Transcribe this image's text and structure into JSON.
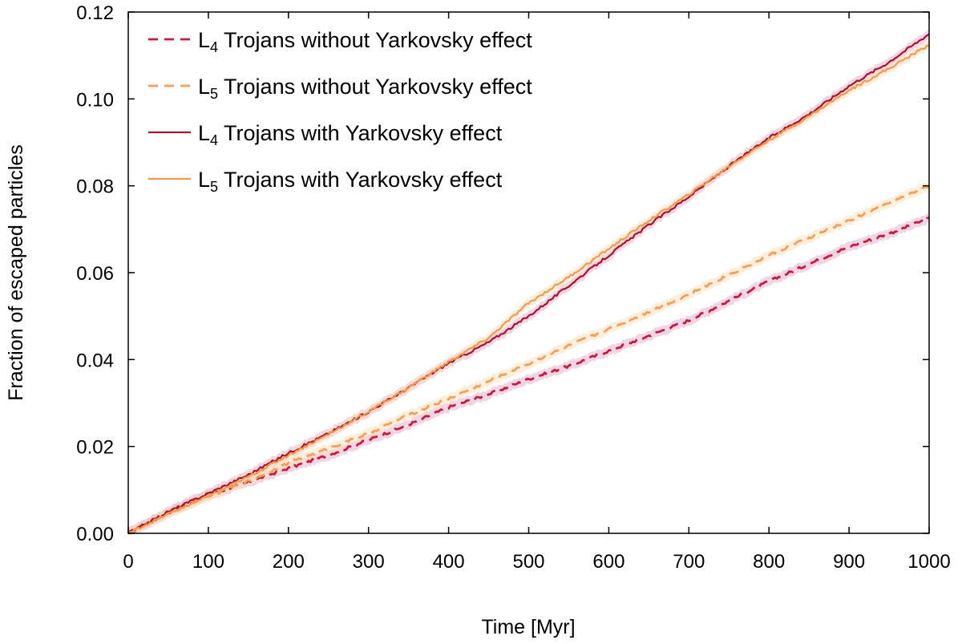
{
  "chart_data": {
    "type": "line",
    "title": "",
    "xlabel": "Time [Myr]",
    "ylabel": "Fraction of escaped particles",
    "xlim": [
      0,
      1000
    ],
    "ylim": [
      0,
      0.12
    ],
    "xticks": [
      0,
      100,
      200,
      300,
      400,
      500,
      600,
      700,
      800,
      900,
      1000
    ],
    "yticks": [
      0,
      0.02,
      0.04,
      0.06,
      0.08,
      0.1,
      0.12
    ],
    "xtick_labels": [
      "0",
      "100",
      "200",
      "300",
      "400",
      "500",
      "600",
      "700",
      "800",
      "900",
      "1000"
    ],
    "ytick_labels": [
      "0.00",
      "0.02",
      "0.04",
      "0.06",
      "0.08",
      "0.10",
      "0.12"
    ],
    "grid": false,
    "legend_position": "top-left",
    "series": [
      {
        "name": "L4 Trojans without Yarkovsky effect",
        "legend_main": "L",
        "legend_sub": "4",
        "legend_rest": " Trojans without Yarkovsky effect",
        "color": "#c41e3a",
        "band_color": "#e6b0cf",
        "dash": "dashed",
        "x": [
          0,
          50,
          100,
          150,
          200,
          250,
          300,
          350,
          400,
          450,
          500,
          550,
          600,
          650,
          700,
          750,
          800,
          850,
          900,
          950,
          1000
        ],
        "y": [
          0,
          0.0048,
          0.0088,
          0.0118,
          0.015,
          0.018,
          0.0215,
          0.025,
          0.029,
          0.032,
          0.0355,
          0.0385,
          0.042,
          0.0455,
          0.049,
          0.0535,
          0.058,
          0.062,
          0.066,
          0.069,
          0.0725
        ]
      },
      {
        "name": "L5 Trojans without Yarkovsky effect",
        "legend_main": "L",
        "legend_sub": "5",
        "legend_rest": " Trojans without Yarkovsky effect",
        "color": "#f5a05a",
        "band_color": "#fde0c0",
        "dash": "dashed",
        "x": [
          0,
          50,
          100,
          150,
          200,
          250,
          300,
          350,
          400,
          450,
          500,
          550,
          600,
          650,
          700,
          750,
          800,
          850,
          900,
          950,
          1000
        ],
        "y": [
          0,
          0.0048,
          0.0085,
          0.012,
          0.0162,
          0.0195,
          0.023,
          0.0272,
          0.031,
          0.035,
          0.039,
          0.0432,
          0.047,
          0.051,
          0.055,
          0.0595,
          0.064,
          0.068,
          0.072,
          0.076,
          0.08
        ]
      },
      {
        "name": "L4 Trojans with Yarkovsky effect",
        "legend_main": "L",
        "legend_sub": "4",
        "legend_rest": " Trojans with Yarkovsky effect",
        "color": "#a8132e",
        "band_color": "#e6b0cf",
        "dash": "solid",
        "x": [
          0,
          50,
          100,
          150,
          200,
          250,
          300,
          350,
          400,
          450,
          500,
          550,
          600,
          650,
          700,
          750,
          800,
          850,
          900,
          950,
          1000
        ],
        "y": [
          0,
          0.005,
          0.0092,
          0.0135,
          0.0185,
          0.023,
          0.028,
          0.0335,
          0.0392,
          0.044,
          0.05,
          0.057,
          0.064,
          0.071,
          0.0775,
          0.0845,
          0.091,
          0.0965,
          0.103,
          0.1085,
          0.115
        ]
      },
      {
        "name": "L5 Trojans with Yarkovsky effect",
        "legend_main": "L",
        "legend_sub": "5",
        "legend_rest": " Trojans with Yarkovsky effect",
        "color": "#f39a4e",
        "band_color": "#fde0c0",
        "dash": "solid",
        "x": [
          0,
          50,
          100,
          150,
          200,
          250,
          300,
          350,
          400,
          450,
          500,
          550,
          600,
          650,
          700,
          750,
          800,
          850,
          900,
          950,
          1000
        ],
        "y": [
          0,
          0.0045,
          0.0085,
          0.013,
          0.018,
          0.0228,
          0.028,
          0.0335,
          0.0395,
          0.045,
          0.053,
          0.059,
          0.0655,
          0.072,
          0.078,
          0.0845,
          0.0905,
          0.096,
          0.102,
          0.107,
          0.1125
        ]
      }
    ]
  }
}
